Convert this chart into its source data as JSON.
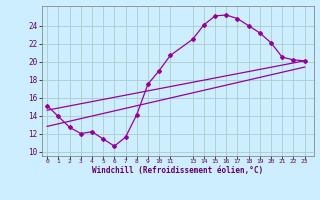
{
  "xlabel": "Windchill (Refroidissement éolien,°C)",
  "bg_color": "#cceeff",
  "grid_color": "#aacccc",
  "line_color": "#990099",
  "xlim": [
    -0.5,
    23.8
  ],
  "ylim": [
    9.5,
    26.2
  ],
  "xtick_positions": [
    0,
    1,
    2,
    3,
    4,
    5,
    6,
    7,
    8,
    9,
    10,
    11,
    13,
    14,
    15,
    16,
    17,
    18,
    19,
    20,
    21,
    22,
    23
  ],
  "xtick_labels": [
    "0",
    "1",
    "2",
    "3",
    "4",
    "5",
    "6",
    "7",
    "8",
    "9",
    "1011",
    "",
    "131415161718192021222 3",
    "",
    "",
    "",
    "",
    "",
    "",
    "",
    "",
    "",
    ""
  ],
  "ytick_positions": [
    10,
    12,
    14,
    16,
    18,
    20,
    22,
    24
  ],
  "ytick_labels": [
    "10",
    "12",
    "14",
    "16",
    "18",
    "20",
    "22",
    "24"
  ],
  "line1_x": [
    0,
    1,
    2,
    3,
    4,
    5,
    6,
    7,
    8,
    9,
    10,
    11,
    13,
    14,
    15,
    16,
    17,
    18,
    19,
    20,
    21,
    22,
    23
  ],
  "line1_y": [
    15.1,
    13.9,
    12.7,
    12.0,
    12.2,
    11.4,
    10.6,
    11.6,
    14.1,
    17.5,
    19.0,
    20.7,
    22.5,
    24.1,
    25.1,
    25.2,
    24.8,
    24.0,
    23.2,
    22.1,
    20.5,
    20.2,
    20.1
  ],
  "line2_x": [
    0,
    23
  ],
  "line2_y": [
    12.8,
    19.4
  ],
  "line3_x": [
    0,
    23
  ],
  "line3_y": [
    14.6,
    20.1
  ]
}
